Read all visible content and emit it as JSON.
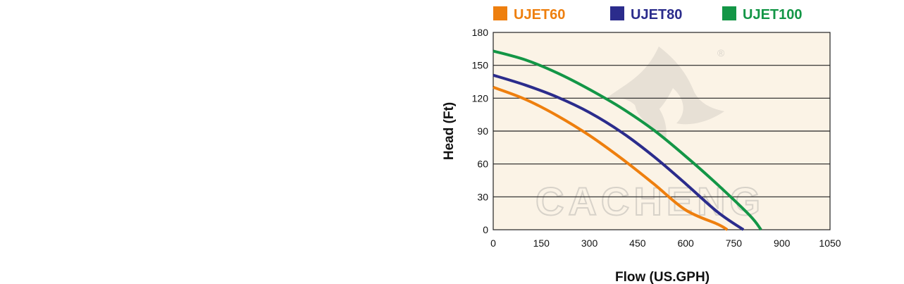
{
  "chart_data": {
    "type": "line",
    "xlabel": "Flow (US.GPH)",
    "ylabel": "Head (Ft)",
    "xlim": [
      0,
      1050
    ],
    "ylim": [
      0,
      180
    ],
    "xticks": [
      "0",
      "150",
      "300",
      "450",
      "600",
      "750",
      "900",
      "1050"
    ],
    "yticks": [
      "0",
      "30",
      "60",
      "90",
      "120",
      "150",
      "180"
    ],
    "grid": "horizontal",
    "legend_position": "top",
    "background_color": "#fbf3e6",
    "series": [
      {
        "name": "UJET60",
        "color": "#ee7f0e",
        "x": [
          0,
          100,
          200,
          300,
          400,
          500,
          600,
          700,
          730
        ],
        "y": [
          130,
          119,
          104,
          86,
          65,
          42,
          18,
          5,
          0
        ]
      },
      {
        "name": "UJET80",
        "color": "#2b2c8c",
        "x": [
          0,
          100,
          200,
          300,
          400,
          500,
          600,
          700,
          780
        ],
        "y": [
          141,
          132,
          121,
          107,
          89,
          67,
          42,
          16,
          0
        ]
      },
      {
        "name": "UJET100",
        "color": "#139646",
        "x": [
          0,
          100,
          200,
          300,
          400,
          500,
          600,
          700,
          800,
          835
        ],
        "y": [
          163,
          155,
          143,
          128,
          111,
          91,
          67,
          41,
          13,
          0
        ]
      }
    ]
  },
  "watermark": {
    "text": "CACHENG",
    "mark": "®"
  }
}
